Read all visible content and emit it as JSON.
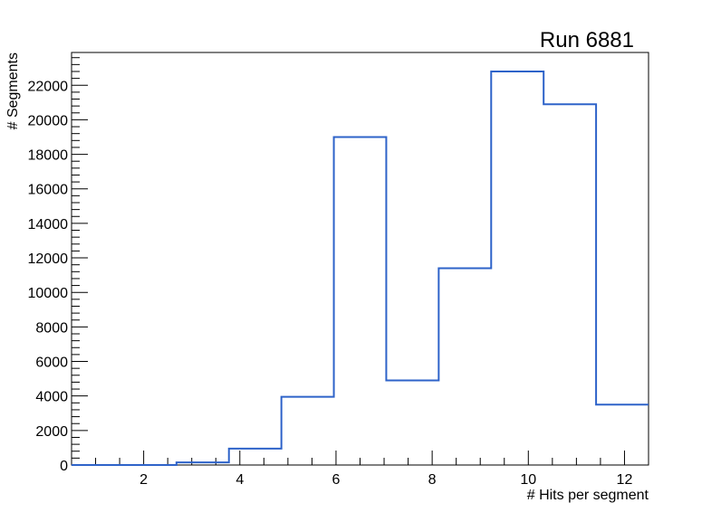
{
  "chart_data": {
    "type": "bar",
    "style": "step-histogram",
    "title": "Run 6881",
    "xlabel": "# Hits per segment",
    "ylabel": "# Segments",
    "xlim": [
      0.5,
      12.5
    ],
    "ylim": [
      0,
      23900
    ],
    "bin_edges": [
      0.5,
      1.591,
      2.682,
      3.773,
      4.864,
      5.955,
      7.045,
      8.136,
      9.227,
      10.318,
      11.409,
      12.5
    ],
    "values": [
      0,
      0,
      150,
      950,
      3950,
      19000,
      4900,
      11400,
      22800,
      20900,
      3500
    ],
    "xticks": [
      2,
      4,
      6,
      8,
      10,
      12
    ],
    "xtick_labels": [
      "2",
      "4",
      "6",
      "8",
      "10",
      "12"
    ],
    "yticks": [
      0,
      2000,
      4000,
      6000,
      8000,
      10000,
      12000,
      14000,
      16000,
      18000,
      20000,
      22000
    ],
    "ytick_labels": [
      "0",
      "2000",
      "4000",
      "6000",
      "8000",
      "10000",
      "12000",
      "14000",
      "16000",
      "18000",
      "20000",
      "22000"
    ],
    "line_color": "#2e63c9",
    "grid": false,
    "legend": "none"
  }
}
